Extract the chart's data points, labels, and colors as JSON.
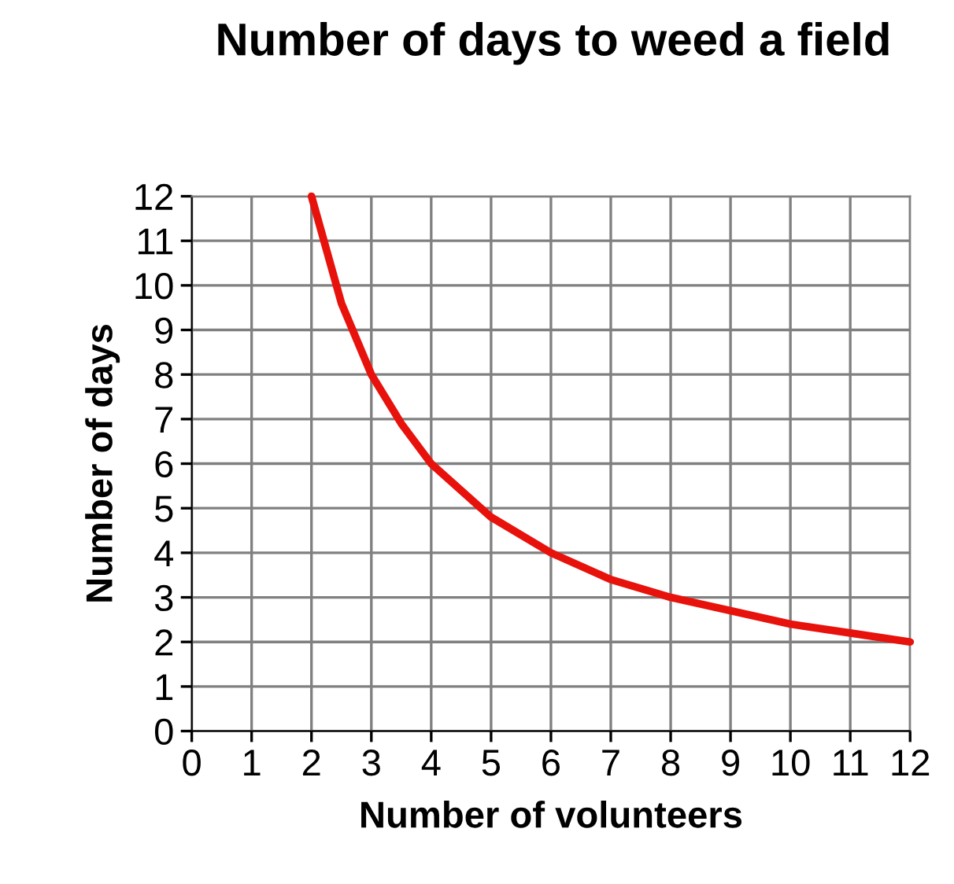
{
  "chart_data": {
    "type": "line",
    "title": "Number of days to weed a field",
    "xlabel": "Number of volunteers",
    "ylabel": "Number of days",
    "x": [
      2,
      2.5,
      3,
      3.5,
      4,
      5,
      6,
      7,
      8,
      9,
      10,
      11,
      12
    ],
    "series": [
      {
        "color": "#e8120c",
        "values": [
          12,
          9.6,
          8,
          6.9,
          6,
          4.8,
          4,
          3.4,
          3,
          2.7,
          2.4,
          2.2,
          2
        ]
      }
    ],
    "xlim": [
      0,
      12
    ],
    "ylim": [
      0,
      12
    ],
    "xticks": [
      0,
      1,
      2,
      3,
      4,
      5,
      6,
      7,
      8,
      9,
      10,
      11,
      12
    ],
    "yticks": [
      0,
      1,
      2,
      3,
      4,
      5,
      6,
      7,
      8,
      9,
      10,
      11,
      12
    ],
    "grid": true,
    "marker": "none",
    "line_style": "solid"
  }
}
